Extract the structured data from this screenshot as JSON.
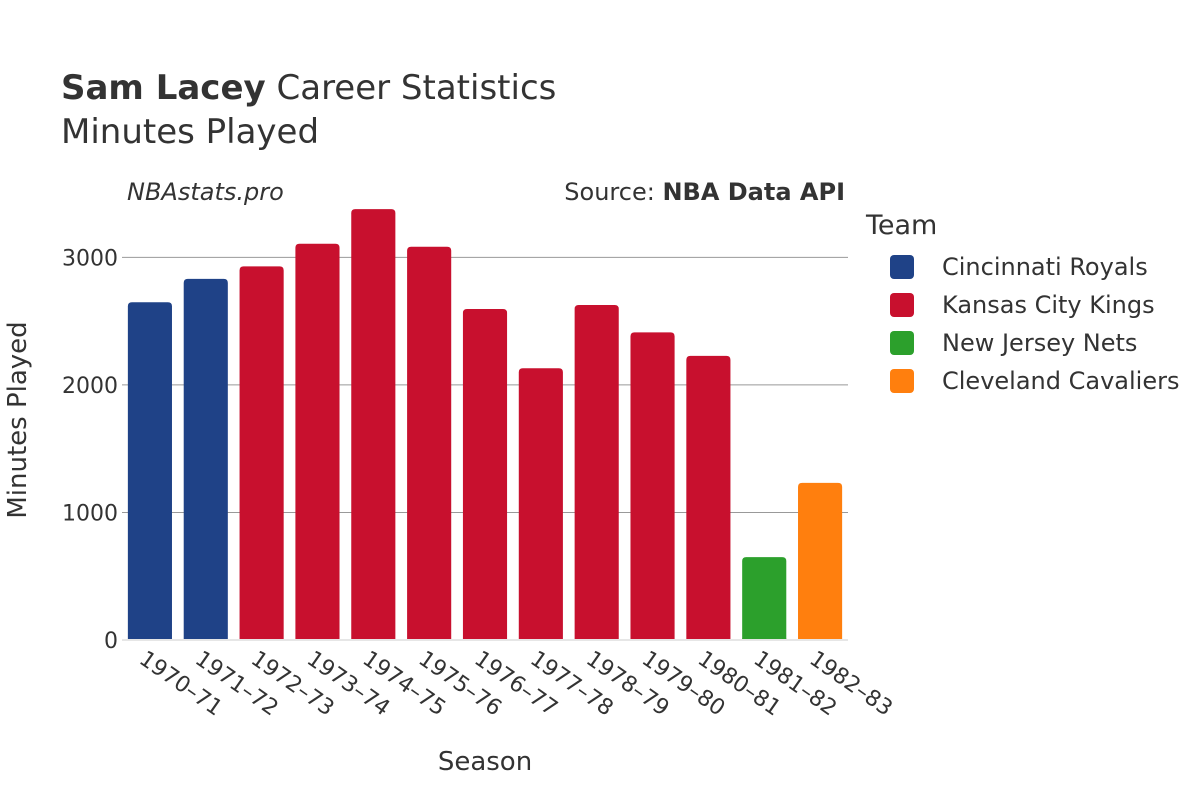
{
  "header": {
    "title_bold": "Sam Lacey",
    "title_rest": " Career Statistics",
    "subtitle": "Minutes Played",
    "brand": "NBAstats.pro",
    "source_prefix": "Source: ",
    "source_name": "NBA Data API"
  },
  "legend": {
    "title": "Team",
    "items": [
      {
        "label": "Cincinnati Royals",
        "color": "#1f4287"
      },
      {
        "label": "Kansas City Kings",
        "color": "#c8102e"
      },
      {
        "label": "New Jersey Nets",
        "color": "#2ca02c"
      },
      {
        "label": "Cleveland Cavaliers",
        "color": "#ff7f0e"
      }
    ]
  },
  "chart_data": {
    "type": "bar",
    "xlabel": "Season",
    "ylabel": "Minutes Played",
    "ylim": [
      0,
      3450
    ],
    "yticks": [
      0,
      1000,
      2000,
      3000
    ],
    "grid": true,
    "legend_position": "right",
    "categories": [
      "1970–71",
      "1971–72",
      "1972–73",
      "1973–74",
      "1974–75",
      "1975–76",
      "1976–77",
      "1977–78",
      "1978–79",
      "1979–80",
      "1980–81",
      "1981–82",
      "1982–83"
    ],
    "series": [
      {
        "name": "Cincinnati Royals",
        "color": "#1f4287",
        "values": [
          2648,
          2832,
          null,
          null,
          null,
          null,
          null,
          null,
          null,
          null,
          null,
          null,
          null
        ]
      },
      {
        "name": "Kansas City Kings",
        "color": "#c8102e",
        "values": [
          null,
          null,
          2930,
          3107,
          3378,
          3083,
          2595,
          2131,
          2627,
          2412,
          2228,
          17,
          null
        ]
      },
      {
        "name": "New Jersey Nets",
        "color": "#2ca02c",
        "values": [
          null,
          null,
          null,
          null,
          null,
          null,
          null,
          null,
          null,
          null,
          null,
          650,
          null
        ]
      },
      {
        "name": "Cleveland Cavaliers",
        "color": "#ff7f0e",
        "values": [
          null,
          null,
          null,
          null,
          null,
          null,
          null,
          null,
          null,
          null,
          null,
          null,
          1232
        ]
      }
    ]
  }
}
